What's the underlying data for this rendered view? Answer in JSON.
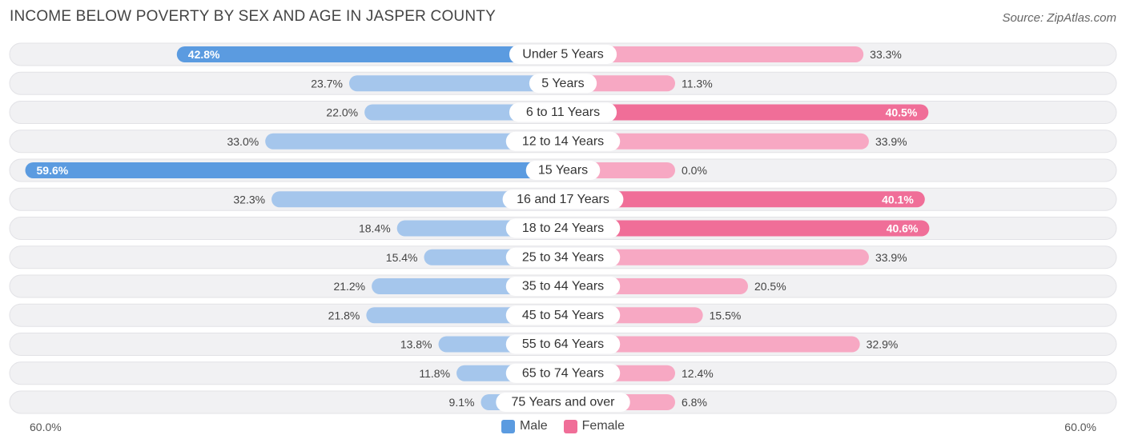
{
  "header": {
    "title": "INCOME BELOW POVERTY BY SEX AND AGE IN JASPER COUNTY",
    "source": "Source: ZipAtlas.com"
  },
  "axis": {
    "left_label": "60.0%",
    "right_label": "60.0%"
  },
  "legend": {
    "male": "Male",
    "female": "Female"
  },
  "colors": {
    "male_strong": "#5b9be0",
    "male_light": "#a5c6ec",
    "female_strong": "#f06e98",
    "female_light": "#f7a8c3",
    "row_bg": "#f1f1f3"
  },
  "chart_data": {
    "type": "bar",
    "title": "INCOME BELOW POVERTY BY SEX AND AGE IN JASPER COUNTY",
    "orientation": "horizontal-diverging",
    "xlim": [
      -60,
      60
    ],
    "categories": [
      "Under 5 Years",
      "5 Years",
      "6 to 11 Years",
      "12 to 14 Years",
      "15 Years",
      "16 and 17 Years",
      "18 to 24 Years",
      "25 to 34 Years",
      "35 to 44 Years",
      "45 to 54 Years",
      "55 to 64 Years",
      "65 to 74 Years",
      "75 Years and over"
    ],
    "series": [
      {
        "name": "Male",
        "values": [
          42.8,
          23.7,
          22.0,
          33.0,
          59.6,
          32.3,
          18.4,
          15.4,
          21.2,
          21.8,
          13.8,
          11.8,
          9.1
        ],
        "labels": [
          "42.8%",
          "23.7%",
          "22.0%",
          "33.0%",
          "59.6%",
          "32.3%",
          "18.4%",
          "15.4%",
          "21.2%",
          "21.8%",
          "13.8%",
          "11.8%",
          "9.1%"
        ]
      },
      {
        "name": "Female",
        "values": [
          33.3,
          11.3,
          40.5,
          33.9,
          0.0,
          40.1,
          40.6,
          33.9,
          20.5,
          15.5,
          32.9,
          12.4,
          6.8
        ],
        "labels": [
          "33.3%",
          "11.3%",
          "40.5%",
          "33.9%",
          "0.0%",
          "40.1%",
          "40.6%",
          "33.9%",
          "20.5%",
          "15.5%",
          "32.9%",
          "12.4%",
          "6.8%"
        ]
      }
    ]
  }
}
